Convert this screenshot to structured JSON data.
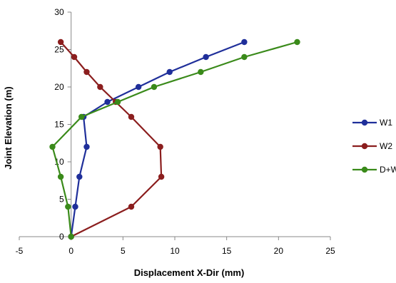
{
  "chart_data": {
    "type": "line",
    "xlabel": "Displacement X-Dir (mm)",
    "ylabel": "Joint Elevation (m)",
    "xlim": [
      -5,
      25
    ],
    "ylim": [
      0,
      30
    ],
    "xticks": [
      -5,
      0,
      5,
      10,
      15,
      20,
      25
    ],
    "yticks": [
      0,
      5,
      10,
      15,
      20,
      25,
      30
    ],
    "grid": false,
    "legend_position": "right",
    "series": [
      {
        "name": "W1",
        "color": "#1f2f9a",
        "points": [
          [
            0,
            0
          ],
          [
            0.4,
            4
          ],
          [
            0.8,
            8
          ],
          [
            1.5,
            12
          ],
          [
            1.2,
            16
          ],
          [
            3.5,
            18
          ],
          [
            6.5,
            20
          ],
          [
            9.5,
            22
          ],
          [
            13,
            24
          ],
          [
            16.7,
            26
          ]
        ]
      },
      {
        "name": "W2",
        "color": "#8b1e1e",
        "points": [
          [
            0,
            0
          ],
          [
            5.8,
            4
          ],
          [
            8.7,
            8
          ],
          [
            8.6,
            12
          ],
          [
            5.8,
            16
          ],
          [
            4.3,
            18
          ],
          [
            2.8,
            20
          ],
          [
            1.5,
            22
          ],
          [
            0.3,
            24
          ],
          [
            -1,
            26
          ]
        ]
      },
      {
        "name": "D+W",
        "color": "#3a8a1a",
        "points": [
          [
            0,
            0
          ],
          [
            -0.3,
            4
          ],
          [
            -1,
            8
          ],
          [
            -1.8,
            12
          ],
          [
            1,
            16
          ],
          [
            4.5,
            18
          ],
          [
            8,
            20
          ],
          [
            12.5,
            22
          ],
          [
            16.7,
            24
          ],
          [
            21.8,
            26
          ]
        ]
      }
    ]
  }
}
